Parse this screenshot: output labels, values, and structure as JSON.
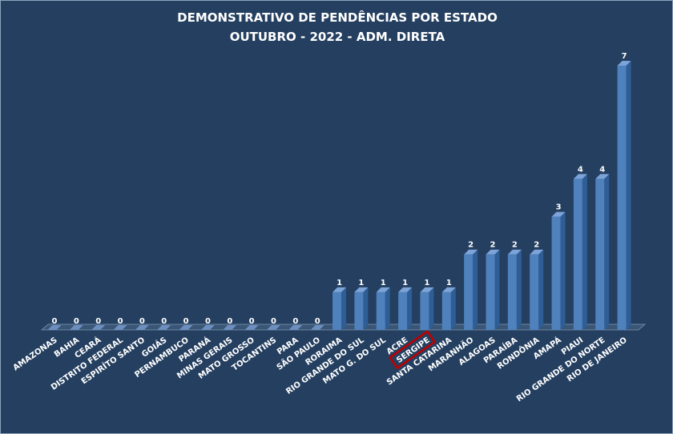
{
  "chart_data": {
    "type": "bar",
    "title": "DEMONSTRATIVO DE PENDÊNCIAS POR ESTADO",
    "subtitle": "OUTUBRO - 2022 - ADM. DIRETA",
    "categories": [
      "AMAZONAS",
      "BAHIA",
      "CEARÁ",
      "DISTRITO FEDERAL",
      "ESPIRÍTO SANTO",
      "GOIÁS",
      "PERNAMBUCO",
      "PARANÁ",
      "MINAS GERAIS",
      "MATO GROSSO",
      "TOCANTINS",
      "PARA",
      "SÃO PAULO",
      "RORAIMA",
      "RIO GRANDE DO SUL",
      "MATO G. DO SUL",
      "ACRE",
      "SERGIPE",
      "SANTA CATARINA",
      "MARANHÃO",
      "ALAGOAS",
      "PARAÍBA",
      "RONDÔNIA",
      "AMAPÁ",
      "PIAUI",
      "RIO GRANDE DO NORTE",
      "RIO DE JANEIRO"
    ],
    "values": [
      0,
      0,
      0,
      0,
      0,
      0,
      0,
      0,
      0,
      0,
      0,
      0,
      0,
      1,
      1,
      1,
      1,
      1,
      1,
      2,
      2,
      2,
      2,
      3,
      4,
      4,
      7
    ],
    "highlighted_category": "SERGIPE",
    "ylim": [
      0,
      7
    ],
    "grid": false,
    "legend": "none",
    "bar_color": "#4f81bd",
    "highlight_color": "#c00000"
  }
}
